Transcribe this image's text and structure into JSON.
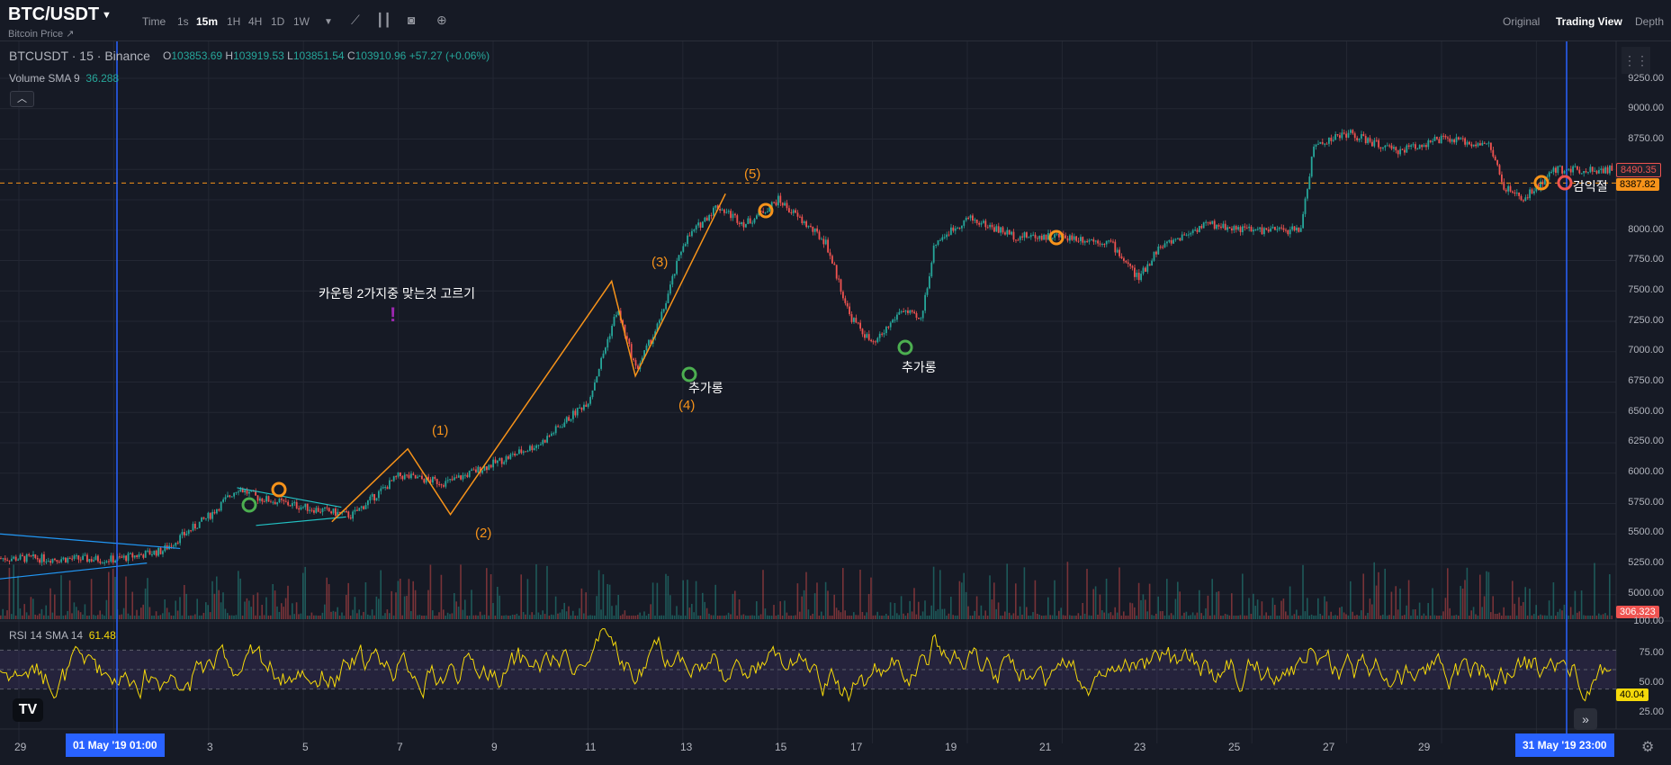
{
  "header": {
    "symbol": "BTC/USDT",
    "symbol_caret": "▼",
    "subtitle": "Bitcoin Price ↗",
    "timeframes": [
      "Time",
      "1s",
      "15m",
      "1H",
      "4H",
      "1D",
      "1W"
    ],
    "active_timeframe": "15m",
    "views": [
      "Original",
      "Trading View",
      "Depth"
    ],
    "active_view": "Trading View"
  },
  "legend": {
    "main": "BTCUSDT · 15 · Binance",
    "o_key": "O",
    "o": "103853.69",
    "h_key": "H",
    "h": "103919.53",
    "l_key": "L",
    "l": "103851.54",
    "c_key": "C",
    "c": "103910.96",
    "change": "+57.27 (+0.06%)",
    "volume_label": "Volume SMA 9",
    "volume_value": "36.288",
    "rsi_label": "RSI 14 SMA 14",
    "rsi_value": "61.48"
  },
  "annotations": {
    "note": "카운팅 2가지중 맞는것 고르기",
    "exclamation": "!",
    "w1": "(1)",
    "w2": "(2)",
    "w3": "(3)",
    "w4": "(4)",
    "w5": "(5)",
    "add1": "추가롱",
    "add2": "추가롱",
    "reduce": "감익절"
  },
  "price_axis": [
    "9250.00",
    "9000.00",
    "8750.00",
    "8500.00",
    "8250.00",
    "8000.00",
    "7750.00",
    "7500.00",
    "7250.00",
    "7000.00",
    "6750.00",
    "6500.00",
    "6250.00",
    "6000.00",
    "5750.00",
    "5500.00",
    "5250.00",
    "5000.00"
  ],
  "price_tags": {
    "red": "8490.35",
    "orange": "8387.82",
    "volume": "306.323"
  },
  "rsi_axis": [
    "100.00",
    "75.00",
    "50.00",
    "25.00"
  ],
  "rsi_tag": "40.04",
  "time_axis": [
    "29",
    "3",
    "5",
    "7",
    "9",
    "11",
    "13",
    "15",
    "17",
    "19",
    "21",
    "23",
    "25",
    "27",
    "29"
  ],
  "date_tags": {
    "left": "01 May '19   01:00",
    "right": "31 May '19   23:00"
  },
  "logo": "TV",
  "colors": {
    "up": "#26a69a",
    "down": "#ef5350",
    "wave": "#f7931a",
    "cursor": "#2962ff",
    "rsi": "#f5d90a",
    "trendline": "#2196f3",
    "triangle": "#22c1c3"
  },
  "chart_data": {
    "type": "candlestick",
    "price_path": [
      [
        0,
        5300
      ],
      [
        2,
        5290
      ],
      [
        3,
        5360
      ],
      [
        4,
        5650
      ],
      [
        4.6,
        5880
      ],
      [
        5,
        5800
      ],
      [
        6,
        5720
      ],
      [
        7,
        5650
      ],
      [
        8,
        5980
      ],
      [
        9,
        5920
      ],
      [
        10,
        6080
      ],
      [
        11,
        6250
      ],
      [
        12,
        6600
      ],
      [
        12.6,
        7350
      ],
      [
        13,
        6850
      ],
      [
        13.5,
        7250
      ],
      [
        14,
        7900
      ],
      [
        14.7,
        8200
      ],
      [
        15.3,
        8050
      ],
      [
        16,
        8250
      ],
      [
        17,
        7900
      ],
      [
        17.5,
        7300
      ],
      [
        18,
        7050
      ],
      [
        18.6,
        7350
      ],
      [
        19,
        7250
      ],
      [
        19.3,
        7900
      ],
      [
        20,
        8100
      ],
      [
        21,
        7950
      ],
      [
        22,
        7950
      ],
      [
        23,
        7900
      ],
      [
        23.6,
        7600
      ],
      [
        24,
        7850
      ],
      [
        25,
        8050
      ],
      [
        26,
        8000
      ],
      [
        27,
        8000
      ],
      [
        27.3,
        8700
      ],
      [
        28,
        8800
      ],
      [
        29,
        8650
      ],
      [
        30,
        8750
      ],
      [
        31,
        8700
      ],
      [
        31.3,
        8350
      ],
      [
        31.7,
        8250
      ],
      [
        32.4,
        8500
      ]
    ],
    "waves": [
      {
        "label": "(1)",
        "day": 8.2,
        "price": 6200
      },
      {
        "label": "(2)",
        "day": 9.1,
        "price": 5660
      },
      {
        "label": "(3)",
        "day": 12.5,
        "price": 7580
      },
      {
        "label": "(4)",
        "day": 13.0,
        "price": 6800
      },
      {
        "label": "(5)",
        "day": 14.9,
        "price": 8300
      }
    ],
    "rsi_levels": [
      30,
      50,
      70
    ]
  }
}
